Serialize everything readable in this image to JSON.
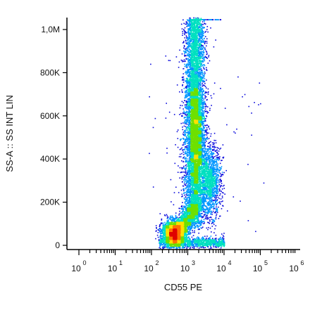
{
  "chart_data": {
    "type": "scatter",
    "title": "",
    "xlabel": "CD55 PE",
    "ylabel": "SS-A :: SS INT LIN",
    "x_scale": "log",
    "x_ticks": [
      {
        "base": "10",
        "exp": "0"
      },
      {
        "base": "10",
        "exp": "1"
      },
      {
        "base": "10",
        "exp": "2"
      },
      {
        "base": "10",
        "exp": "3"
      },
      {
        "base": "10",
        "exp": "4"
      },
      {
        "base": "10",
        "exp": "5"
      },
      {
        "base": "10",
        "exp": "6"
      }
    ],
    "xlim": [
      1,
      1000000
    ],
    "y_scale": "linear",
    "y_ticks": [
      "0",
      "200K",
      "400K",
      "600K",
      "800K",
      "1,0M"
    ],
    "ylim": [
      -10000,
      1050000
    ],
    "colormap": [
      "#0a0adc",
      "#0096ff",
      "#00e0c0",
      "#6ee000",
      "#ffe000",
      "#ff7000",
      "#e00000"
    ],
    "populations": [
      {
        "name": "low-scatter cluster",
        "x_center_log10": 2.6,
        "y_center": 60000,
        "density": "high"
      },
      {
        "name": "main granulocyte band",
        "x_center_log10": 3.2,
        "y_range": [
          80000,
          1050000
        ],
        "density": "high"
      },
      {
        "name": "secondary cluster",
        "x_center_log10": 3.6,
        "y_center": 300000,
        "density": "medium"
      }
    ],
    "grid": false,
    "legend": "none"
  }
}
